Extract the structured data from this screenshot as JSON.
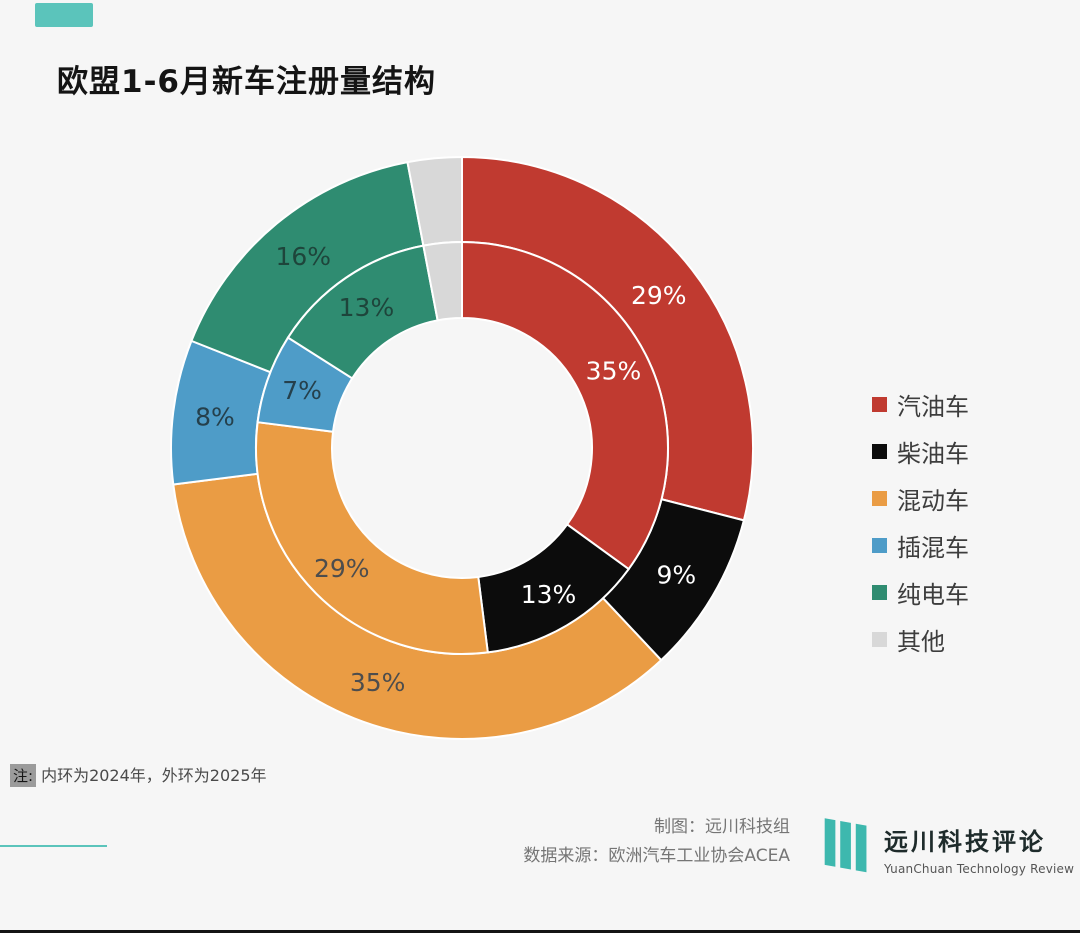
{
  "title": "欧盟1-6月新车注册量结构",
  "note": {
    "prefix": "注:",
    "text": "内环为2024年，外环为2025年"
  },
  "credits": {
    "line1": "制图：远川科技组",
    "line2": "数据来源：欧洲汽车工业协会ACEA"
  },
  "logo": {
    "name": "远川科技评论",
    "subtitle": "YuanChuan Technology Review",
    "icon": "yuanchuan-bars-icon",
    "color": "#3DB8AE"
  },
  "colors": {
    "accent": "#5BC4BB",
    "background": "#F6F6F6",
    "bottom_border": "#141414"
  },
  "chart_data": {
    "type": "pie",
    "subtype": "nested-donut",
    "title": "欧盟1-6月新车注册量结构",
    "categories": [
      "汽油车",
      "柴油车",
      "混动车",
      "插混车",
      "纯电车",
      "其他"
    ],
    "colors": [
      "#C03A30",
      "#0C0C0C",
      "#EA9C44",
      "#4E9CC8",
      "#2F8C71",
      "#D8D8D8"
    ],
    "label_colors": [
      "#FFFFFF",
      "#FFFFFF",
      "#4D4D4D",
      "#25404C",
      "#1E453B",
      "#666666"
    ],
    "rings": [
      {
        "name": "外环",
        "year": "2025",
        "values": [
          29,
          9,
          35,
          8,
          16,
          3
        ],
        "labels": [
          "29%",
          "9%",
          "35%",
          "8%",
          "16%",
          ""
        ]
      },
      {
        "name": "内环",
        "year": "2024",
        "values": [
          35,
          13,
          29,
          7,
          13,
          3
        ],
        "labels": [
          "35%",
          "13%",
          "29%",
          "7%",
          "13%",
          ""
        ]
      }
    ],
    "legend": [
      "汽油车",
      "柴油车",
      "混动车",
      "插混车",
      "纯电车",
      "其他"
    ],
    "legend_position": "right",
    "annotation": "内环为2024年，外环为2025年"
  }
}
